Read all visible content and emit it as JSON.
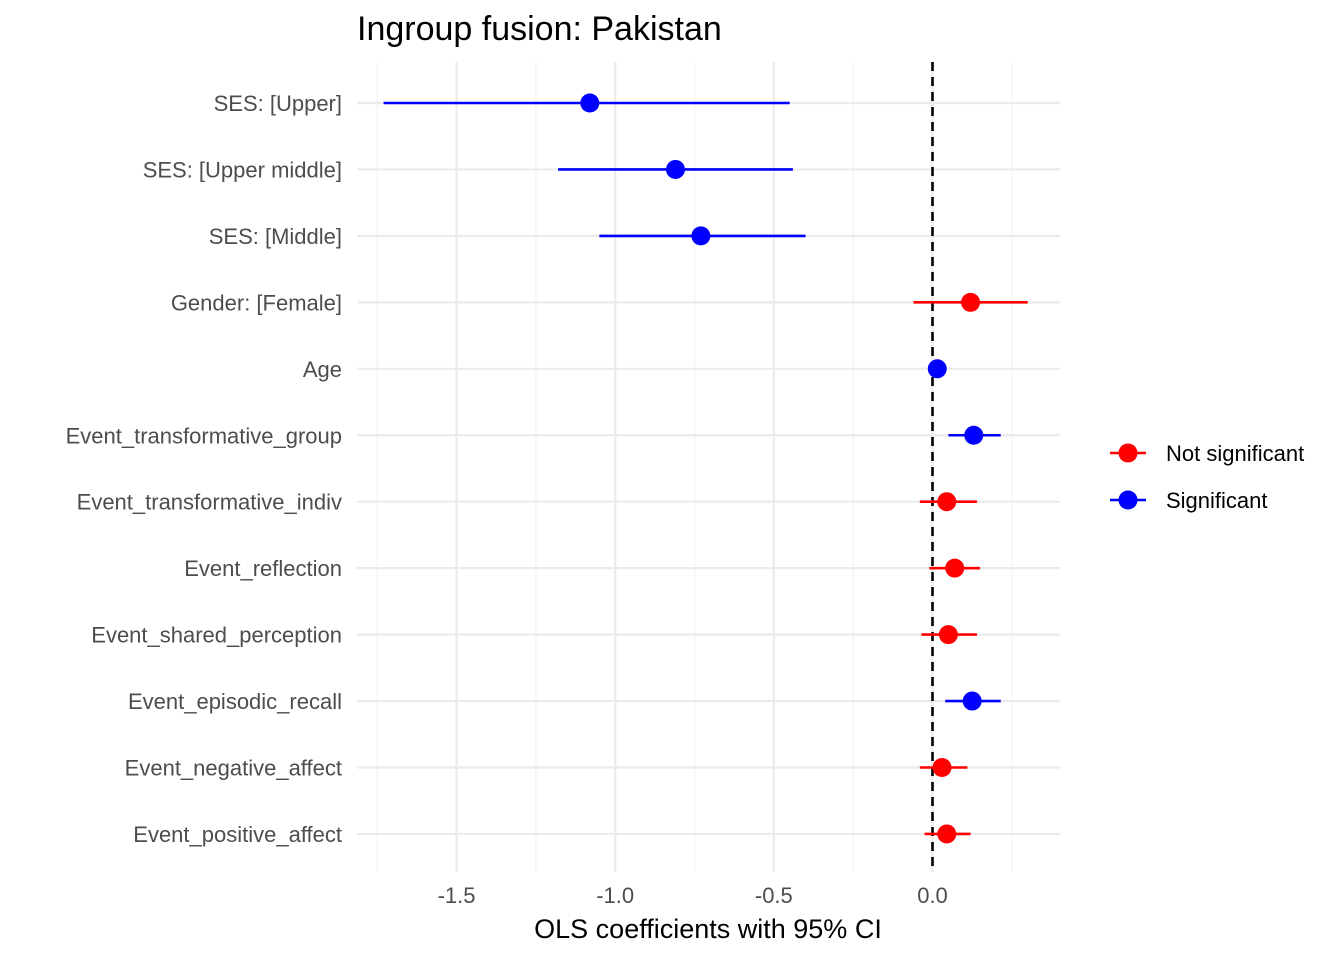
{
  "chart_data": {
    "type": "scatter",
    "subtype": "coefficient-plot",
    "title": "Ingroup fusion: Pakistan",
    "xlabel": "OLS coefficients with 95% CI",
    "ylabel": "",
    "xlim": [
      -1.8,
      0.4
    ],
    "x_ticks": [
      -1.5,
      -1.0,
      -0.5,
      0.0
    ],
    "x_tick_labels": [
      "-1.5",
      "-1.0",
      "-0.5",
      "0.0"
    ],
    "x_minor_ticks": [
      -1.75,
      -1.25,
      -0.75,
      -0.25,
      0.25
    ],
    "grid": true,
    "reference_line": {
      "x": 0,
      "style": "dashed",
      "color": "#000000"
    },
    "legend": {
      "position": "right",
      "entries": [
        {
          "label": "Not significant",
          "color": "#ff0000"
        },
        {
          "label": "Significant",
          "color": "#0000ff"
        }
      ]
    },
    "terms": [
      {
        "label": "SES:  [Upper]",
        "estimate": -1.08,
        "ci_low": -1.73,
        "ci_high": -0.45,
        "group": "Significant"
      },
      {
        "label": "SES:  [Upper middle]",
        "estimate": -0.81,
        "ci_low": -1.18,
        "ci_high": -0.44,
        "group": "Significant"
      },
      {
        "label": "SES:  [Middle]",
        "estimate": -0.73,
        "ci_low": -1.05,
        "ci_high": -0.4,
        "group": "Significant"
      },
      {
        "label": "Gender:  [Female]",
        "estimate": 0.12,
        "ci_low": -0.06,
        "ci_high": 0.3,
        "group": "Not significant"
      },
      {
        "label": "Age",
        "estimate": 0.015,
        "ci_low": 0.005,
        "ci_high": 0.025,
        "group": "Significant"
      },
      {
        "label": "Event_transformative_group",
        "estimate": 0.13,
        "ci_low": 0.05,
        "ci_high": 0.215,
        "group": "Significant"
      },
      {
        "label": "Event_transformative_indiv",
        "estimate": 0.045,
        "ci_low": -0.04,
        "ci_high": 0.14,
        "group": "Not significant"
      },
      {
        "label": "Event_reflection",
        "estimate": 0.07,
        "ci_low": -0.01,
        "ci_high": 0.15,
        "group": "Not significant"
      },
      {
        "label": "Event_shared_perception",
        "estimate": 0.05,
        "ci_low": -0.035,
        "ci_high": 0.14,
        "group": "Not significant"
      },
      {
        "label": "Event_episodic_recall",
        "estimate": 0.125,
        "ci_low": 0.04,
        "ci_high": 0.215,
        "group": "Significant"
      },
      {
        "label": "Event_negative_affect",
        "estimate": 0.03,
        "ci_low": -0.04,
        "ci_high": 0.11,
        "group": "Not significant"
      },
      {
        "label": "Event_positive_affect",
        "estimate": 0.045,
        "ci_low": -0.025,
        "ci_high": 0.12,
        "group": "Not significant"
      }
    ]
  }
}
